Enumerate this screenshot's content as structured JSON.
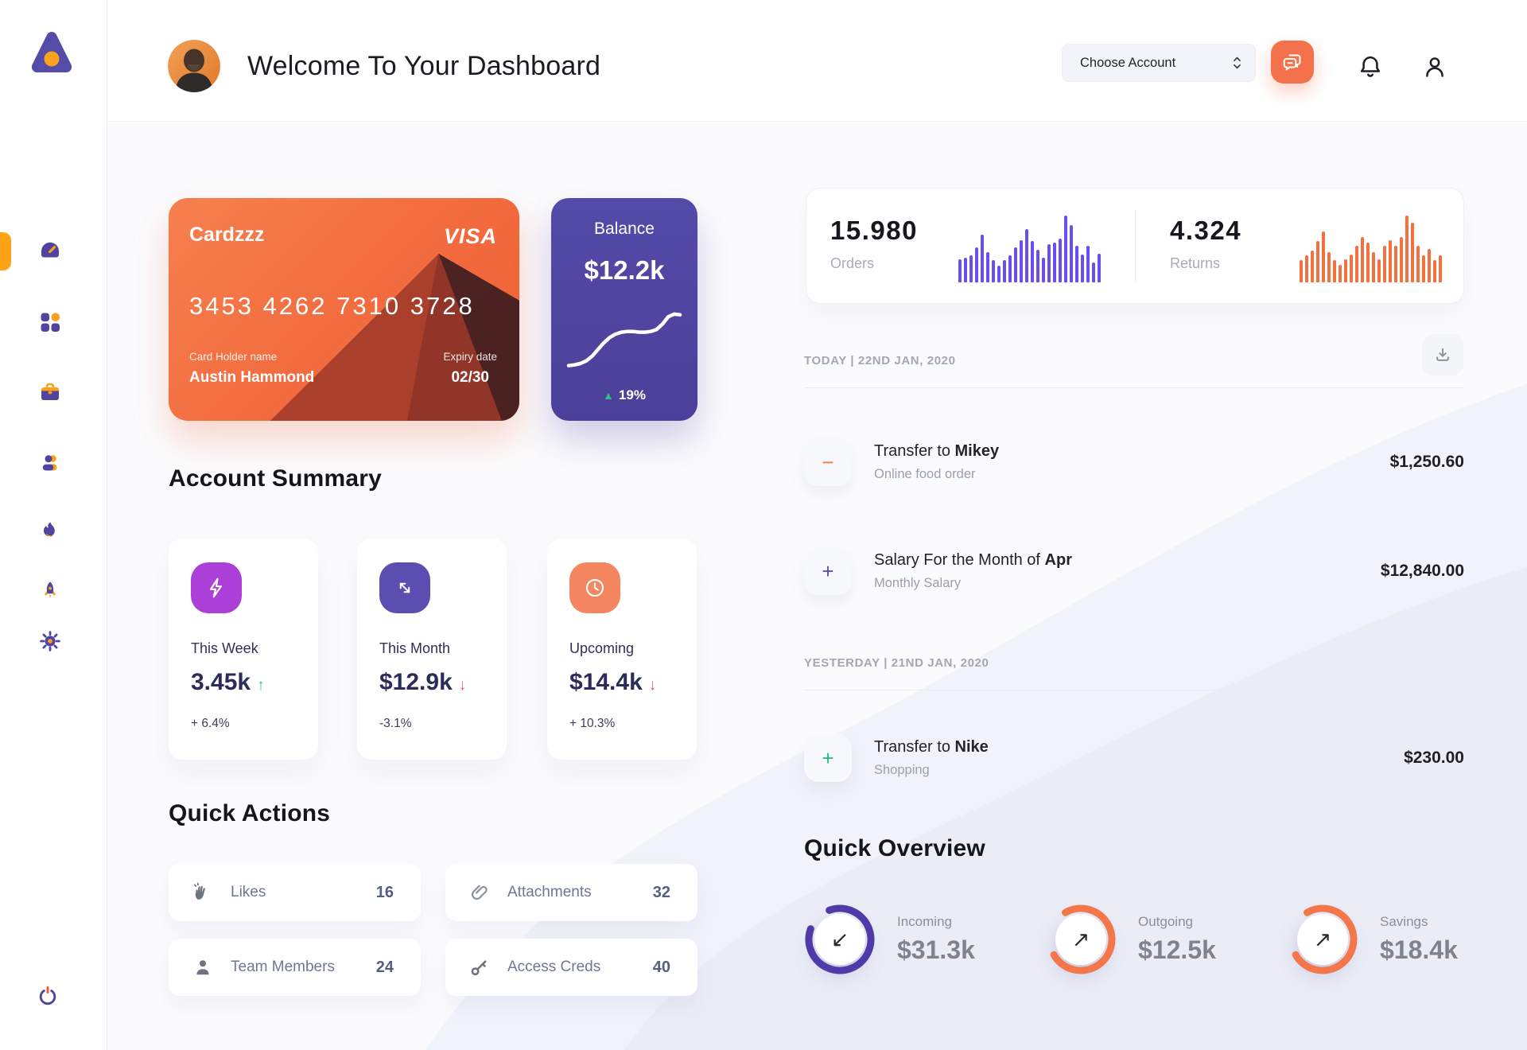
{
  "app": {
    "title": "Welcome To Your Dashboard"
  },
  "header": {
    "choose_account": "Choose Account"
  },
  "sidebar": {
    "logo": "triangle-logo",
    "items": [
      "dashboard",
      "apps",
      "work",
      "team",
      "activity",
      "launch",
      "settings"
    ],
    "footer": "power"
  },
  "card": {
    "name": "Cardzzz",
    "brand": "VISA",
    "number": "3453 4262 7310 3728",
    "holder_label": "Card Holder name",
    "holder": "Austin Hammond",
    "expiry_label": "Expiry date",
    "expiry": "02/30"
  },
  "balance": {
    "label": "Balance",
    "value": "$12.2k",
    "arrow": "▲",
    "change": "19%"
  },
  "stats": {
    "orders": {
      "value": "15.980",
      "label": "Orders"
    },
    "returns": {
      "value": "4.324",
      "label": "Returns"
    }
  },
  "summary": {
    "heading": "Account Summary",
    "cards": [
      {
        "label": "This Week",
        "value": "3.45k",
        "arrow": "↑",
        "delta": "+ 6.4%"
      },
      {
        "label": "This Month",
        "value": "$12.9k",
        "arrow": "↓",
        "delta": "-3.1%"
      },
      {
        "label": "Upcoming",
        "value": "$14.4k",
        "arrow": "↓",
        "delta": "+ 10.3%"
      }
    ]
  },
  "quick_actions": {
    "heading": "Quick Actions",
    "items": [
      {
        "label": "Likes",
        "count": "16"
      },
      {
        "label": "Attachments",
        "count": "32"
      },
      {
        "label": "Team Members",
        "count": "24"
      },
      {
        "label": "Access Creds",
        "count": "40"
      }
    ]
  },
  "transactions": {
    "groups": [
      {
        "date": "TODAY | 22ND JAN, 2020",
        "rows": [
          {
            "sign": "−",
            "prefix": "Transfer to ",
            "bold": "Mikey",
            "sub": "Online food order",
            "amount": "$1,250.60"
          },
          {
            "sign": "+",
            "prefix": "Salary For the Month of ",
            "bold": "Apr",
            "sub": "Monthly Salary",
            "amount": "$12,840.00"
          }
        ]
      },
      {
        "date": "YESTERDAY | 21ND JAN, 2020",
        "rows": [
          {
            "sign": "+",
            "prefix": "Transfer to ",
            "bold": "Nike",
            "sub": "Shopping",
            "amount": "$230.00"
          }
        ]
      }
    ]
  },
  "overview": {
    "heading": "Quick Overview",
    "items": [
      {
        "label": "Incoming",
        "value": "$31.3k",
        "arrow": "↙"
      },
      {
        "label": "Outgoing",
        "value": "$12.5k",
        "arrow": "↗"
      },
      {
        "label": "Savings",
        "value": "$18.4k",
        "arrow": "↗"
      }
    ]
  },
  "colors": {
    "coral": "#F4724B",
    "indigo": "#4E44A0",
    "amber": "#FFA216",
    "green": "#2EBD85",
    "red": "#E25C67",
    "purple_bar": "#6A4DF4",
    "orange_bar": "#F4713F",
    "ring_purple": "#4F3AA8"
  },
  "chart_data": [
    {
      "id": "orders-bars",
      "type": "bar",
      "title": "Orders volume",
      "color": "#6A4DF4",
      "values": [
        34,
        37,
        40,
        52,
        72,
        45,
        33,
        25,
        33,
        40,
        52,
        63,
        80,
        62,
        49,
        37,
        57,
        60,
        65,
        100,
        86,
        55,
        42,
        55,
        30,
        43
      ]
    },
    {
      "id": "returns-bars",
      "type": "bar",
      "title": "Returns volume",
      "color": "#F4713F",
      "values": [
        33,
        40,
        48,
        62,
        76,
        45,
        33,
        26,
        35,
        42,
        55,
        68,
        60,
        45,
        35,
        55,
        63,
        55,
        68,
        100,
        89,
        55,
        40,
        50,
        33,
        41
      ]
    },
    {
      "id": "balance-line",
      "type": "line",
      "title": "Balance trend",
      "color": "#FFFFFF",
      "values": [
        16,
        17,
        19,
        23,
        30,
        40,
        50,
        58,
        63,
        66,
        67,
        67,
        66,
        66,
        67,
        70,
        78,
        89,
        93,
        92
      ]
    },
    {
      "id": "ring-incoming",
      "type": "progress",
      "label": "Incoming",
      "percent": 86,
      "color": "#4F3AA8"
    },
    {
      "id": "ring-outgoing",
      "type": "progress",
      "label": "Outgoing",
      "percent": 75,
      "color": "#F4764B"
    },
    {
      "id": "ring-savings",
      "type": "progress",
      "label": "Savings",
      "percent": 75,
      "color": "#F4764B"
    }
  ]
}
